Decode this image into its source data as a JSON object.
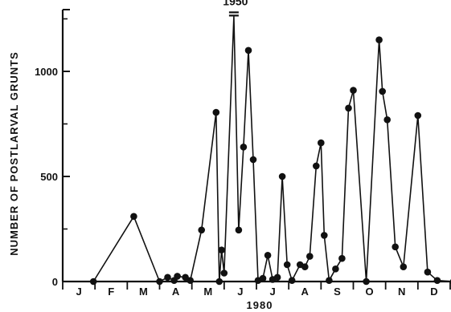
{
  "chart_data": {
    "type": "line",
    "ylabel": "NUMBER OF POSTLARVAL GRUNTS",
    "xlabel": "1980",
    "ylim": [
      0,
      1300
    ],
    "yticks": [
      0,
      500,
      1000
    ],
    "x_unit": "month (0 = start of Jan, 12 = end of Dec)",
    "xlim": [
      0,
      12
    ],
    "months": [
      "J",
      "F",
      "M",
      "A",
      "M",
      "J",
      "J",
      "A",
      "S",
      "O",
      "N",
      "D"
    ],
    "grid": false,
    "legend": "none",
    "annotation": {
      "text": "1950",
      "x": 5.3,
      "y": 1950
    },
    "series": [
      {
        "points": [
          [
            0.95,
            0
          ],
          [
            2.2,
            310
          ],
          [
            3.0,
            0
          ],
          [
            3.25,
            20
          ],
          [
            3.45,
            5
          ],
          [
            3.55,
            25
          ],
          [
            3.8,
            20
          ],
          [
            3.95,
            5
          ],
          [
            4.3,
            245
          ],
          [
            4.75,
            805
          ],
          [
            4.85,
            0
          ],
          [
            4.92,
            150
          ],
          [
            5.0,
            40
          ],
          [
            5.3,
            1950
          ],
          [
            5.45,
            245
          ],
          [
            5.6,
            640
          ],
          [
            5.75,
            1100
          ],
          [
            5.9,
            580
          ],
          [
            6.05,
            5
          ],
          [
            6.2,
            15
          ],
          [
            6.35,
            125
          ],
          [
            6.5,
            10
          ],
          [
            6.65,
            20
          ],
          [
            6.8,
            500
          ],
          [
            6.95,
            80
          ],
          [
            7.1,
            5
          ],
          [
            7.35,
            80
          ],
          [
            7.5,
            70
          ],
          [
            7.65,
            120
          ],
          [
            7.85,
            550
          ],
          [
            8.0,
            660
          ],
          [
            8.1,
            220
          ],
          [
            8.25,
            5
          ],
          [
            8.45,
            60
          ],
          [
            8.65,
            110
          ],
          [
            8.85,
            825
          ],
          [
            9.0,
            910
          ],
          [
            9.4,
            0
          ],
          [
            9.8,
            1150
          ],
          [
            9.9,
            905
          ],
          [
            10.05,
            770
          ],
          [
            10.3,
            165
          ],
          [
            10.55,
            70
          ],
          [
            11.0,
            790
          ],
          [
            11.3,
            45
          ],
          [
            11.6,
            5
          ],
          [
            12.1,
            0
          ]
        ]
      }
    ],
    "style": {
      "line_color": "#111111",
      "marker_color": "#111111",
      "background": "#ffffff"
    }
  }
}
